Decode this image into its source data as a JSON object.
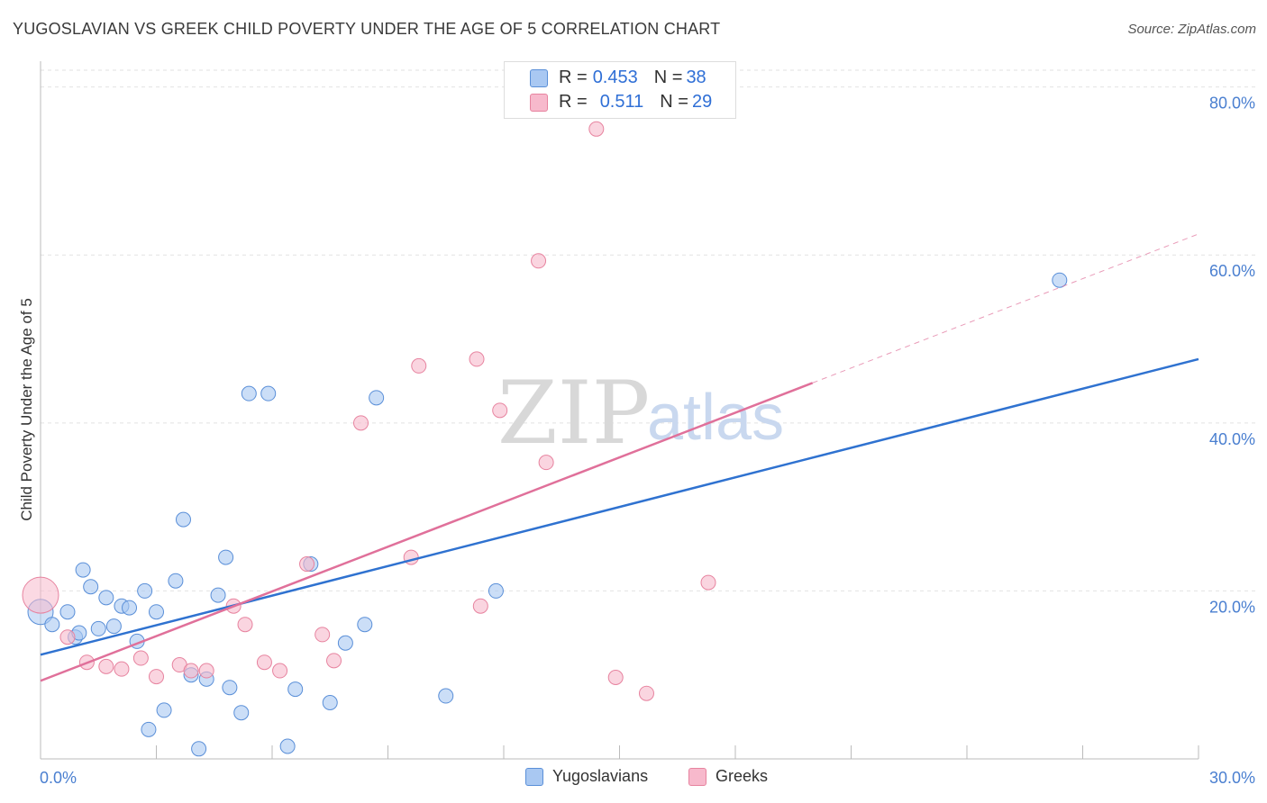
{
  "title": "YUGOSLAVIAN VS GREEK CHILD POVERTY UNDER THE AGE OF 5 CORRELATION CHART",
  "source": "Source: ZipAtlas.com",
  "watermark": {
    "zip": "ZIP",
    "atlas": "atlas"
  },
  "legend": {
    "rows": [
      {
        "r_label": "R = ",
        "r_value": "0.453",
        "n_label": "N = ",
        "n_value": "38",
        "color": "#a9c8f2"
      },
      {
        "r_label": "R = ",
        "r_value": "0.511",
        "n_label": "N = ",
        "n_value": "29",
        "color": "#f7b9cc"
      }
    ]
  },
  "bottom_legend": {
    "series1": "Yugoslavians",
    "series2": "Greeks"
  },
  "chart_data": {
    "type": "scatter",
    "title": "YUGOSLAVIAN VS GREEK CHILD POVERTY UNDER THE AGE OF 5 CORRELATION CHART",
    "xlabel": "",
    "ylabel": "Child Poverty Under the Age of 5",
    "xlim": [
      0,
      30
    ],
    "ylim": [
      0,
      82
    ],
    "x_ticks": [
      {
        "v": 0,
        "label": "0.0%"
      },
      {
        "v": 30,
        "label": "30.0%"
      }
    ],
    "y_ticks": [
      {
        "v": 20,
        "label": "20.0%"
      },
      {
        "v": 40,
        "label": "40.0%"
      },
      {
        "v": 60,
        "label": "60.0%"
      },
      {
        "v": 80,
        "label": "80.0%"
      }
    ],
    "grid": true,
    "series": [
      {
        "name": "Yugoslavians",
        "color": "#a9c8f2",
        "stroke": "#5a8fd8",
        "line_color": "#2f72d0",
        "trend": {
          "x0": 0,
          "y0": 12.4,
          "x1": 30,
          "y1": 47.6,
          "dash_from": null
        },
        "points": [
          [
            0.0,
            17.5
          ],
          [
            0.3,
            16.0
          ],
          [
            0.7,
            17.5
          ],
          [
            0.9,
            14.5
          ],
          [
            1.1,
            22.5
          ],
          [
            1.3,
            20.5
          ],
          [
            1.5,
            15.5
          ],
          [
            1.7,
            19.2
          ],
          [
            1.9,
            15.8
          ],
          [
            2.1,
            18.2
          ],
          [
            2.3,
            18.0
          ],
          [
            2.5,
            14.0
          ],
          [
            2.7,
            20.0
          ],
          [
            3.0,
            17.5
          ],
          [
            3.2,
            5.8
          ],
          [
            3.5,
            21.2
          ],
          [
            3.7,
            28.5
          ],
          [
            3.9,
            10.0
          ],
          [
            4.1,
            1.2
          ],
          [
            4.3,
            9.5
          ],
          [
            4.6,
            19.5
          ],
          [
            4.8,
            24.0
          ],
          [
            4.9,
            8.5
          ],
          [
            5.2,
            5.5
          ],
          [
            5.4,
            43.5
          ],
          [
            5.9,
            43.5
          ],
          [
            6.4,
            1.5
          ],
          [
            6.6,
            8.3
          ],
          [
            7.0,
            23.2
          ],
          [
            7.5,
            6.7
          ],
          [
            7.9,
            13.8
          ],
          [
            8.4,
            16.0
          ],
          [
            8.7,
            43.0
          ],
          [
            10.5,
            7.5
          ],
          [
            11.8,
            20.0
          ],
          [
            1.0,
            15.0
          ],
          [
            2.8,
            3.5
          ],
          [
            26.4,
            57.0
          ]
        ]
      },
      {
        "name": "Greeks",
        "color": "#f7b9cc",
        "stroke": "#e7839f",
        "line_color": "#e0709a",
        "trend": {
          "x0": 0,
          "y0": 9.3,
          "x1": 30,
          "y1": 62.5,
          "dash_from": 20.0
        },
        "points": [
          [
            0.0,
            19.5
          ],
          [
            0.7,
            14.5
          ],
          [
            1.2,
            11.5
          ],
          [
            1.7,
            11.0
          ],
          [
            2.1,
            10.7
          ],
          [
            2.6,
            12.0
          ],
          [
            3.0,
            9.8
          ],
          [
            3.6,
            11.2
          ],
          [
            3.9,
            10.5
          ],
          [
            4.3,
            10.5
          ],
          [
            5.0,
            18.2
          ],
          [
            5.3,
            16.0
          ],
          [
            5.8,
            11.5
          ],
          [
            6.2,
            10.5
          ],
          [
            6.9,
            23.2
          ],
          [
            7.3,
            14.8
          ],
          [
            7.6,
            11.7
          ],
          [
            8.3,
            40.0
          ],
          [
            9.6,
            24.0
          ],
          [
            9.8,
            46.8
          ],
          [
            11.3,
            47.6
          ],
          [
            11.4,
            18.2
          ],
          [
            11.9,
            41.5
          ],
          [
            12.9,
            59.3
          ],
          [
            13.1,
            35.3
          ],
          [
            14.4,
            75.0
          ],
          [
            14.9,
            9.7
          ],
          [
            15.7,
            7.8
          ],
          [
            17.3,
            21.0
          ]
        ]
      }
    ]
  }
}
